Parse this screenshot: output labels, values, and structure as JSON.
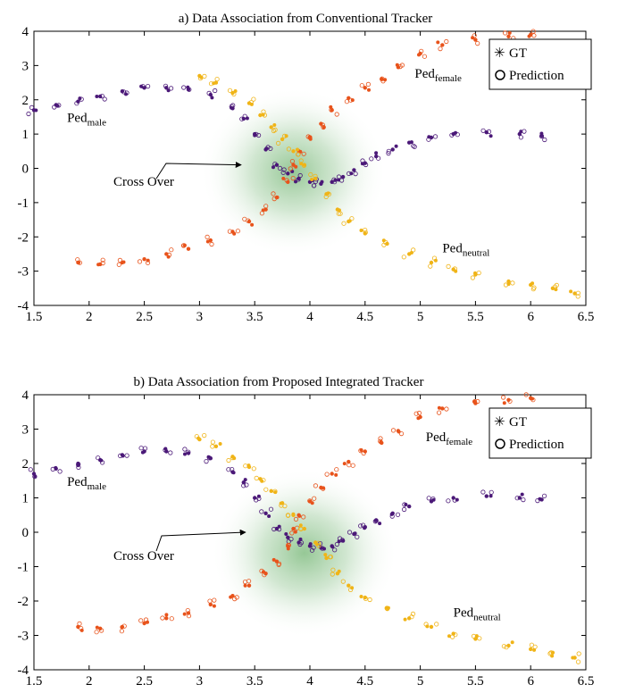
{
  "colors": {
    "purple": "#4b1978",
    "orange": "#e8531b",
    "yellow": "#f0b417",
    "glow": "#3f9a3f"
  },
  "chart_data": [
    {
      "type": "scatter",
      "title": "a) Data Association from Conventional Tracker",
      "xlim": [
        1.5,
        6.5
      ],
      "ylim": [
        -4,
        4
      ],
      "xticks": [
        "1.5",
        "2",
        "2.5",
        "3",
        "3.5",
        "4",
        "4.5",
        "5",
        "5.5",
        "6",
        "6.5"
      ],
      "yticks": [
        "4",
        "3",
        "2",
        "1",
        "0",
        "-1",
        "-2",
        "-3",
        "-4"
      ],
      "legend": {
        "placement": "top-right",
        "gt": "GT",
        "prediction": "Prediction"
      },
      "annotation": {
        "text": "Cross Over",
        "points_to": [
          3.41,
          0.1
        ]
      },
      "glow_center": [
        3.85,
        -0.1
      ],
      "labels": [
        {
          "base": "Ped",
          "sub": "male",
          "x": 1.8,
          "y": 1.35
        },
        {
          "base": "Ped",
          "sub": "female",
          "x": 4.95,
          "y": 2.65
        },
        {
          "base": "Ped",
          "sub": "neutral",
          "x": 5.2,
          "y": -2.45
        }
      ],
      "series": [
        {
          "name": "Ped male",
          "color": "purple",
          "points": [
            [
              1.5,
              1.7
            ],
            [
              1.7,
              1.85
            ],
            [
              1.9,
              1.95
            ],
            [
              2.1,
              2.1
            ],
            [
              2.3,
              2.25
            ],
            [
              2.5,
              2.35
            ],
            [
              2.7,
              2.35
            ],
            [
              2.9,
              2.3
            ],
            [
              3.1,
              2.15
            ],
            [
              3.3,
              1.75
            ],
            [
              3.4,
              1.45
            ],
            [
              3.5,
              1.0
            ],
            [
              3.6,
              0.55
            ],
            [
              3.7,
              0.1
            ],
            [
              3.8,
              -0.15
            ],
            [
              3.9,
              -0.3
            ],
            [
              4.0,
              -0.4
            ],
            [
              4.1,
              -0.45
            ],
            [
              4.2,
              -0.4
            ],
            [
              4.3,
              -0.25
            ],
            [
              4.4,
              -0.05
            ],
            [
              4.5,
              0.15
            ],
            [
              4.6,
              0.35
            ],
            [
              4.75,
              0.55
            ],
            [
              4.9,
              0.75
            ],
            [
              5.1,
              0.9
            ],
            [
              5.3,
              1.0
            ],
            [
              5.6,
              1.05
            ],
            [
              5.9,
              1.0
            ],
            [
              6.1,
              0.95
            ]
          ]
        },
        {
          "name": "Ped female",
          "color": "orange",
          "points": [
            [
              1.9,
              -2.75
            ],
            [
              2.1,
              -2.8
            ],
            [
              2.3,
              -2.75
            ],
            [
              2.5,
              -2.65
            ],
            [
              2.7,
              -2.5
            ],
            [
              2.9,
              -2.35
            ],
            [
              3.1,
              -2.1
            ],
            [
              3.3,
              -1.85
            ],
            [
              3.45,
              -1.55
            ],
            [
              3.6,
              -1.2
            ],
            [
              3.7,
              -0.85
            ],
            [
              3.8,
              -0.4
            ],
            [
              3.85,
              0.1
            ],
            [
              3.9,
              0.5
            ],
            [
              4.0,
              0.9
            ],
            [
              4.1,
              1.3
            ],
            [
              4.2,
              1.7
            ],
            [
              4.35,
              2.05
            ],
            [
              4.5,
              2.35
            ],
            [
              4.65,
              2.6
            ],
            [
              4.8,
              2.95
            ],
            [
              5.0,
              3.35
            ],
            [
              5.2,
              3.6
            ],
            [
              5.5,
              3.75
            ],
            [
              5.8,
              3.85
            ],
            [
              6.0,
              3.9
            ]
          ]
        },
        {
          "name": "Ped neutral",
          "color": "yellow",
          "points": [
            [
              3.0,
              2.7
            ],
            [
              3.15,
              2.5
            ],
            [
              3.3,
              2.2
            ],
            [
              3.45,
              1.9
            ],
            [
              3.55,
              1.55
            ],
            [
              3.65,
              1.2
            ],
            [
              3.75,
              0.85
            ],
            [
              3.85,
              0.5
            ],
            [
              3.95,
              0.1
            ],
            [
              4.05,
              -0.3
            ],
            [
              4.15,
              -0.75
            ],
            [
              4.25,
              -1.2
            ],
            [
              4.35,
              -1.55
            ],
            [
              4.5,
              -1.9
            ],
            [
              4.7,
              -2.2
            ],
            [
              4.9,
              -2.5
            ],
            [
              5.1,
              -2.75
            ],
            [
              5.3,
              -2.95
            ],
            [
              5.5,
              -3.1
            ],
            [
              5.8,
              -3.3
            ],
            [
              6.0,
              -3.4
            ],
            [
              6.2,
              -3.5
            ],
            [
              6.4,
              -3.65
            ]
          ]
        }
      ]
    },
    {
      "type": "scatter",
      "title": "b) Data Association from Proposed Integrated Tracker",
      "xlim": [
        1.5,
        6.5
      ],
      "ylim": [
        -4,
        4
      ],
      "xticks": [
        "1.5",
        "2",
        "2.5",
        "3",
        "3.5",
        "4",
        "4.5",
        "5",
        "5.5",
        "6",
        "6.5"
      ],
      "yticks": [
        "4",
        "3",
        "2",
        "1",
        "0",
        "-1",
        "-2",
        "-3",
        "-4"
      ],
      "legend": {
        "placement": "top-right",
        "gt": "GT",
        "prediction": "Prediction"
      },
      "annotation": {
        "text": "Cross Over",
        "points_to": [
          3.45,
          0.0
        ]
      },
      "glow_center": [
        3.95,
        -0.6
      ],
      "labels": [
        {
          "base": "Ped",
          "sub": "male",
          "x": 1.8,
          "y": 1.35
        },
        {
          "base": "Ped",
          "sub": "female",
          "x": 5.05,
          "y": 2.65
        },
        {
          "base": "Ped",
          "sub": "neutral",
          "x": 5.3,
          "y": -2.45
        }
      ],
      "series": [
        {
          "name": "Ped male",
          "color": "purple",
          "points": [
            [
              1.5,
              1.7
            ],
            [
              1.7,
              1.85
            ],
            [
              1.9,
              1.95
            ],
            [
              2.1,
              2.1
            ],
            [
              2.3,
              2.25
            ],
            [
              2.5,
              2.35
            ],
            [
              2.7,
              2.35
            ],
            [
              2.9,
              2.3
            ],
            [
              3.1,
              2.15
            ],
            [
              3.3,
              1.75
            ],
            [
              3.4,
              1.45
            ],
            [
              3.5,
              1.0
            ],
            [
              3.6,
              0.55
            ],
            [
              3.7,
              0.1
            ],
            [
              3.8,
              -0.15
            ],
            [
              3.9,
              -0.3
            ],
            [
              4.0,
              -0.4
            ],
            [
              4.1,
              -0.45
            ],
            [
              4.2,
              -0.4
            ],
            [
              4.3,
              -0.25
            ],
            [
              4.4,
              -0.05
            ],
            [
              4.5,
              0.15
            ],
            [
              4.6,
              0.35
            ],
            [
              4.75,
              0.55
            ],
            [
              4.9,
              0.75
            ],
            [
              5.1,
              0.9
            ],
            [
              5.3,
              1.0
            ],
            [
              5.6,
              1.05
            ],
            [
              5.9,
              1.0
            ],
            [
              6.1,
              0.95
            ]
          ]
        },
        {
          "name": "Ped female",
          "color": "orange",
          "points": [
            [
              1.9,
              -2.75
            ],
            [
              2.1,
              -2.8
            ],
            [
              2.3,
              -2.75
            ],
            [
              2.5,
              -2.65
            ],
            [
              2.7,
              -2.5
            ],
            [
              2.9,
              -2.35
            ],
            [
              3.1,
              -2.1
            ],
            [
              3.3,
              -1.85
            ],
            [
              3.45,
              -1.55
            ],
            [
              3.6,
              -1.2
            ],
            [
              3.7,
              -0.85
            ],
            [
              3.8,
              -0.4
            ],
            [
              3.85,
              0.1
            ],
            [
              3.9,
              0.5
            ],
            [
              4.0,
              0.9
            ],
            [
              4.1,
              1.3
            ],
            [
              4.2,
              1.7
            ],
            [
              4.35,
              2.05
            ],
            [
              4.5,
              2.35
            ],
            [
              4.65,
              2.6
            ],
            [
              4.8,
              2.95
            ],
            [
              5.0,
              3.35
            ],
            [
              5.2,
              3.6
            ],
            [
              5.5,
              3.75
            ],
            [
              5.8,
              3.85
            ],
            [
              6.0,
              3.9
            ]
          ]
        },
        {
          "name": "Ped neutral",
          "color": "yellow",
          "points": [
            [
              3.0,
              2.7
            ],
            [
              3.15,
              2.5
            ],
            [
              3.3,
              2.2
            ],
            [
              3.45,
              1.9
            ],
            [
              3.55,
              1.55
            ],
            [
              3.65,
              1.2
            ],
            [
              3.75,
              0.85
            ],
            [
              3.85,
              0.5
            ],
            [
              3.95,
              0.1
            ],
            [
              4.05,
              -0.3
            ],
            [
              4.15,
              -0.75
            ],
            [
              4.25,
              -1.2
            ],
            [
              4.35,
              -1.55
            ],
            [
              4.5,
              -1.9
            ],
            [
              4.7,
              -2.2
            ],
            [
              4.9,
              -2.5
            ],
            [
              5.1,
              -2.75
            ],
            [
              5.3,
              -2.95
            ],
            [
              5.5,
              -3.1
            ],
            [
              5.8,
              -3.3
            ],
            [
              6.0,
              -3.4
            ],
            [
              6.2,
              -3.5
            ],
            [
              6.4,
              -3.65
            ]
          ]
        }
      ]
    }
  ]
}
